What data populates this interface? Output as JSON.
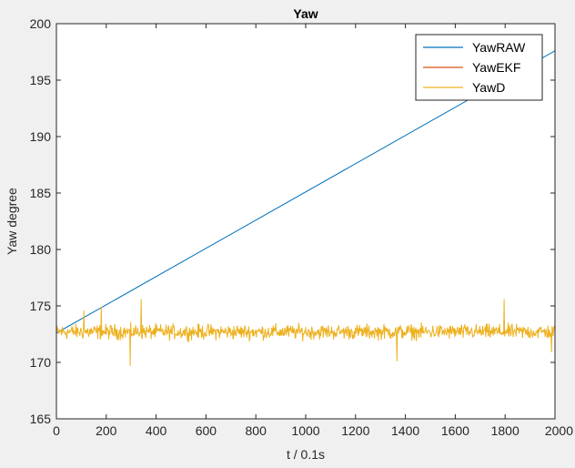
{
  "chart_data": {
    "type": "line",
    "title": "Yaw",
    "xlabel": "t / 0.1s",
    "ylabel": "Yaw degree",
    "xlim": [
      0,
      2000
    ],
    "ylim": [
      165,
      200
    ],
    "xticks": [
      0,
      200,
      400,
      600,
      800,
      1000,
      1200,
      1400,
      1600,
      1800,
      2000
    ],
    "yticks": [
      165,
      170,
      175,
      180,
      185,
      190,
      195,
      200
    ],
    "grid": false,
    "legend_position": "top-right",
    "series": [
      {
        "name": "YawRAW",
        "color": "#0072bd",
        "x": [
          0,
          2000
        ],
        "y": [
          172.6,
          197.6
        ]
      },
      {
        "name": "YawEKF",
        "color": "#d95319",
        "x": [],
        "y": []
      },
      {
        "name": "YawD",
        "color": "#edb120",
        "style": "noisy",
        "mean": 172.7,
        "noise_amplitude": 0.7,
        "x_range": [
          0,
          2000
        ],
        "spikes": [
          {
            "x": 110,
            "y": 174.6
          },
          {
            "x": 180,
            "y": 174.9
          },
          {
            "x": 295,
            "y": 169.7
          },
          {
            "x": 340,
            "y": 175.6
          },
          {
            "x": 1365,
            "y": 170.1
          },
          {
            "x": 1795,
            "y": 175.6
          },
          {
            "x": 1985,
            "y": 170.9
          }
        ]
      }
    ]
  }
}
